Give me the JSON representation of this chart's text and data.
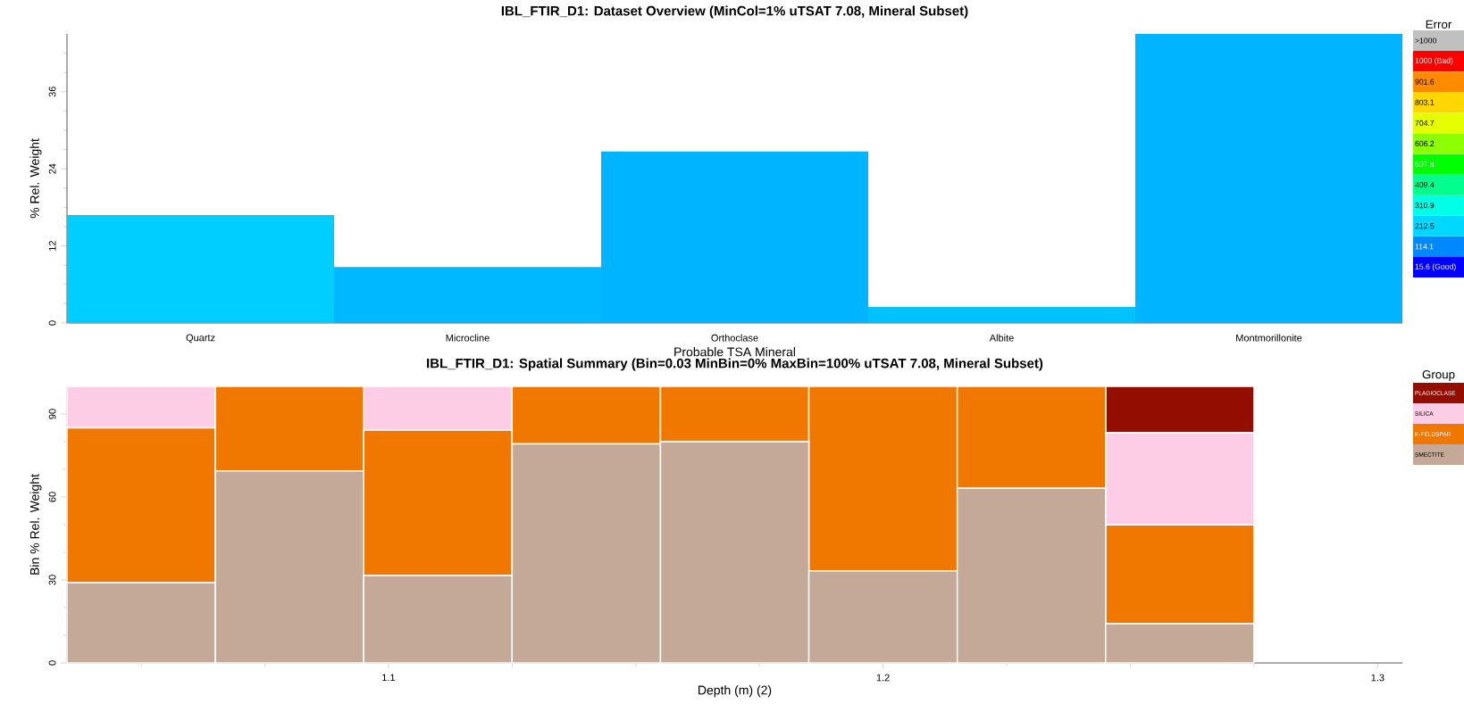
{
  "chart_data": [
    {
      "type": "bar",
      "title": "IBL_FTIR_D1: Dataset Overview (MinCol=1% uTSAT 7.08, Mineral Subset)",
      "xlabel": "Probable TSA Mineral",
      "ylabel": "% Rel. Weight",
      "categories": [
        "Quartz",
        "Microcline",
        "Orthoclase",
        "Albite",
        "Montmorillonite"
      ],
      "values": [
        16.8,
        8.7,
        26.7,
        2.5,
        45
      ],
      "colors": [
        "#00ceff",
        "#00b8ff",
        "#00b4ff",
        "#00c2ff",
        "#00b4ff"
      ],
      "clabel": "Error",
      "clim": [
        -33.6,
        1147.6
      ],
      "cticks": [
        {
          "value": 15.6,
          "label": "15.6 (Good)"
        },
        114.1,
        212.5,
        310.9,
        409.4,
        507.8,
        606.2,
        704.7,
        803.1,
        901.6,
        {
          "value": 1000,
          "label": "1000 (Bad)"
        },
        {
          "value": 1098.4,
          "label": ">1000"
        }
      ],
      "ylim": [
        0,
        45
      ],
      "yticks": [
        0,
        {
          "value": 3,
          "label": null
        },
        {
          "value": 6,
          "label": null
        },
        {
          "value": 9,
          "label": null
        },
        12,
        {
          "value": 15,
          "label": null
        },
        {
          "value": 18,
          "label": null
        },
        {
          "value": 21,
          "label": null
        },
        24,
        {
          "value": 27,
          "label": null
        },
        {
          "value": 30,
          "label": null
        },
        {
          "value": 33,
          "label": null
        },
        36,
        {
          "value": 39,
          "label": null
        },
        {
          "value": 42,
          "label": null
        }
      ]
    },
    {
      "type": "bar",
      "title": "IBL_FTIR_D1: Spatial Summary (Bin=0.03 MinBin=0% MaxBin=100% uTSAT 7.08, Mineral Subset)",
      "xlabel": "Depth (m) (2)",
      "ylabel": "Bin % Rel. Weight",
      "x": [
        1.05,
        1.08,
        1.11,
        1.14,
        1.17,
        1.2,
        1.23,
        1.26
      ],
      "stacked": true,
      "legend": "right",
      "legend_title": "Group",
      "series": [
        {
          "name": "SMECTITE",
          "color": "#c4a998",
          "values": [
            29,
            69.4,
            31.6,
            79.2,
            80,
            33.3,
            63.1,
            14.2
          ]
        },
        {
          "name": "K-FELDSPAR",
          "color": "#f07800",
          "values": [
            56,
            30.6,
            52.6,
            20.8,
            20,
            66.7,
            36.9,
            35.7
          ]
        },
        {
          "name": "SILICA",
          "color": "#fdcde6",
          "values": [
            15,
            0,
            15.8,
            0,
            0,
            0,
            0,
            33.3
          ]
        },
        {
          "name": "PLAGIOCLASE",
          "color": "#940e00",
          "values": [
            0,
            0,
            0,
            0,
            0,
            0,
            0,
            16.8
          ]
        }
      ],
      "xlim": [
        1.035,
        1.305
      ],
      "xticks": [
        {
          "value": 1.05,
          "label": null
        },
        {
          "value": 1.075,
          "label": null
        },
        1.1,
        {
          "value": 1.125,
          "label": null
        },
        {
          "value": 1.15,
          "label": null
        },
        {
          "value": 1.175,
          "label": null
        },
        1.2,
        {
          "value": 1.225,
          "label": null
        },
        {
          "value": 1.25,
          "label": null
        },
        {
          "value": 1.275,
          "label": null
        },
        1.3
      ],
      "ylim": [
        0,
        100
      ],
      "yticks": [
        0,
        {
          "value": 10,
          "label": null
        },
        {
          "value": 20,
          "label": null
        },
        30,
        {
          "value": 40,
          "label": null
        },
        {
          "value": 50,
          "label": null
        },
        60,
        {
          "value": 70,
          "label": null
        },
        {
          "value": 80,
          "label": null
        },
        90
      ]
    }
  ]
}
